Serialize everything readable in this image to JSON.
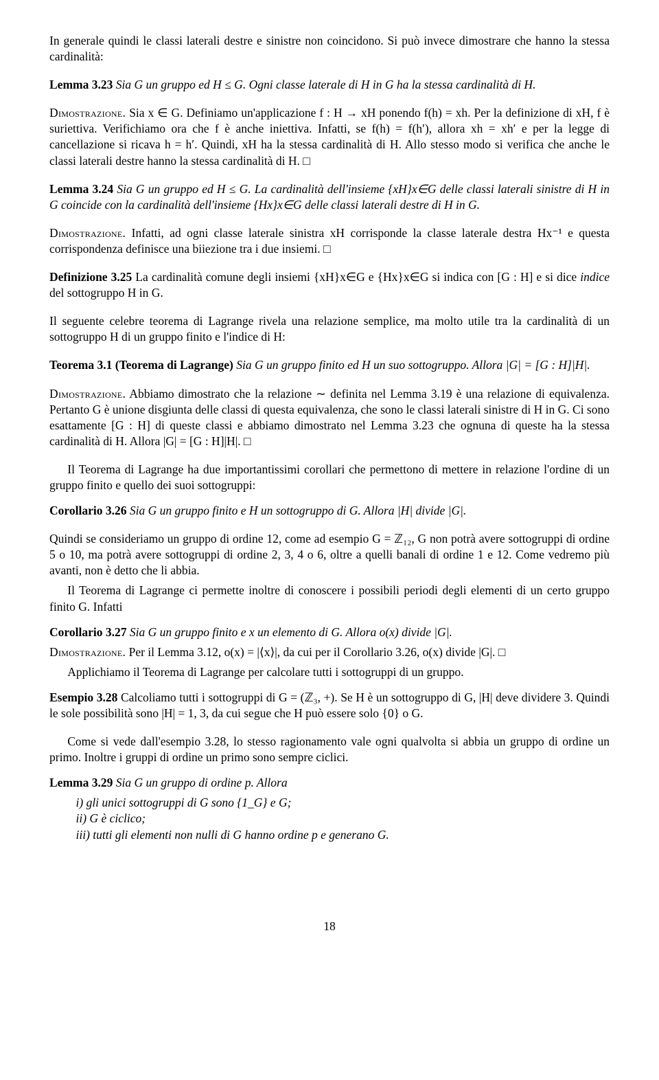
{
  "p1": "In generale quindi le classi laterali destre e sinistre non coincidono. Si può invece dimostrare che hanno la stessa cardinalità:",
  "lemma323_head": "Lemma 3.23",
  "lemma323_stmt": "Sia G un gruppo ed H ≤ G. Ogni classe laterale di H in G ha la stessa cardinalità di H.",
  "dim_label": "Dimostrazione.",
  "dim323": "Sia x ∈ G. Definiamo un'applicazione f : H → xH ponendo f(h) = xh. Per la definizione di xH, f è suriettiva. Verifichiamo ora che f è anche iniettiva. Infatti, se f(h) = f(h′), allora xh = xh′ e per la legge di cancellazione si ricava h = h′. Quindi, xH ha la stessa cardinalità di H. Allo stesso modo si verifica che anche le classi laterali destre hanno la stessa cardinalità di H.  □",
  "lemma324_head": "Lemma 3.24",
  "lemma324_stmt": "Sia G un gruppo ed H ≤ G. La cardinalità dell'insieme {xH}x∈G delle classi laterali sinistre di H in G coincide con la cardinalità dell'insieme {Hx}x∈G delle classi laterali destre di H in G.",
  "dim324": "Infatti, ad ogni classe laterale sinistra xH corrisponde la classe laterale destra Hx⁻¹ e questa corrispondenza definisce una biiezione tra i due insiemi.  □",
  "def325_head": "Definizione 3.25",
  "def325": "La cardinalità comune degli insiemi {xH}x∈G e {Hx}x∈G si indica con [G : H] e si dice ",
  "def325_ital": "indice",
  "def325_tail": " del sottogruppo H in G.",
  "p_lagrange_intro": "Il seguente celebre teorema di Lagrange rivela una relazione semplice, ma molto utile tra la cardinalità di un sottogruppo H di un gruppo finito e l'indice di H:",
  "thm31_head": "Teorema 3.1 (Teorema di Lagrange)",
  "thm31_stmt": "Sia G un gruppo finito ed H un suo sottogruppo. Allora |G| = [G : H]|H|.",
  "dim31": "Abbiamo dimostrato che la relazione ∼ definita nel Lemma 3.19 è una relazione di equivalenza. Pertanto G è unione disgiunta delle classi di questa equivalenza, che sono le classi laterali sinistre di H in G. Ci sono esattamente [G : H] di queste classi e abbiamo dimostrato nel Lemma 3.23 che ognuna di queste ha la stessa cardinalità di H. Allora |G| = [G : H]|H|.  □",
  "p_cor_intro": "Il Teorema di Lagrange ha due importantissimi corollari che permettono di mettere in relazione l'ordine di un gruppo finito e quello dei suoi sottogruppi:",
  "cor326_head": "Corollario 3.26",
  "cor326_stmt": "Sia G un gruppo finito e H un sottogruppo di G. Allora |H| divide |G|.",
  "p_cor326_after": "Quindi se consideriamo un gruppo di ordine 12, come ad esempio G = ℤ₁₂, G non potrà avere sottogruppi di ordine 5 o 10, ma potrà avere sottogruppi di ordine 2, 3, 4 o 6, oltre a quelli banali di ordine 1 e 12. Come vedremo più avanti, non è detto che li abbia.",
  "p_cor326_after2": "Il Teorema di Lagrange ci permette inoltre di conoscere i possibili periodi degli elementi di un certo gruppo finito G. Infatti",
  "cor327_head": "Corollario 3.27",
  "cor327_stmt": "Sia G un gruppo finito e x un elemento di G. Allora o(x) divide |G|.",
  "dim327": "Per il Lemma 3.12, o(x) = |⟨x⟩|, da cui per il Corollario 3.26, o(x) divide |G|.  □",
  "p_apply": "Applichiamo il Teorema di Lagrange per calcolare tutti i sottogruppi di un gruppo.",
  "ex328_head": "Esempio 3.28",
  "ex328": "Calcoliamo tutti i sottogruppi di G = (ℤ₃, +). Se H è un sottogruppo di G, |H| deve dividere 3. Quindi le sole possibilità sono |H| = 1, 3, da cui segue che H può essere solo {0} o G.",
  "p_ex_after": "Come si vede dall'esempio 3.28, lo stesso ragionamento vale ogni qualvolta si abbia un gruppo di ordine un primo. Inoltre i gruppi di ordine un primo sono sempre ciclici.",
  "lemma329_head": "Lemma 3.29",
  "lemma329_stmt": "Sia G un gruppo di ordine p. Allora",
  "lemma329_i": "i) gli unici sottogruppi di G sono {1_G} e G;",
  "lemma329_ii": "ii) G è ciclico;",
  "lemma329_iii": "iii) tutti gli elementi non nulli di G hanno ordine p e generano G.",
  "page_number": "18"
}
